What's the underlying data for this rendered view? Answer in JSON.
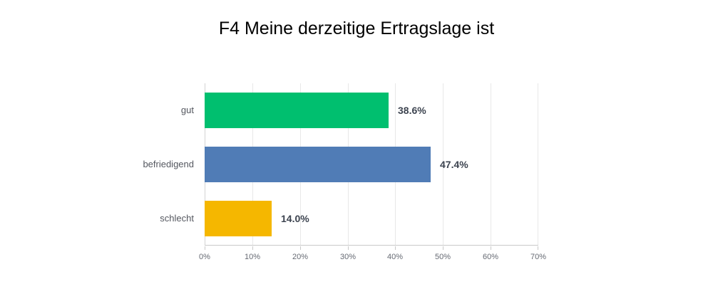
{
  "page": {
    "background": "#ffffff"
  },
  "chart_data": {
    "type": "bar",
    "orientation": "horizontal",
    "title": "F4 Meine derzeitige Ertragslage ist",
    "categories": [
      "gut",
      "befriedigend",
      "schlecht"
    ],
    "values": [
      38.6,
      47.4,
      14.0
    ],
    "value_labels": [
      "38.6%",
      "47.4%",
      "14.0%"
    ],
    "bar_colors": [
      "#00BF6F",
      "#507CB6",
      "#F5B700"
    ],
    "xlabel": "",
    "ylabel": "",
    "xlim": [
      0,
      70
    ],
    "x_ticks": [
      0,
      10,
      20,
      30,
      40,
      50,
      60,
      70
    ],
    "x_tick_labels": [
      "0%",
      "10%",
      "20%",
      "30%",
      "40%",
      "50%",
      "60%",
      "70%"
    ],
    "grid": true,
    "legend": false
  },
  "colors": {
    "title": "#000000",
    "grid_line": "#e8e8e8",
    "zero_line": "#d4d4d4",
    "axis_line": "#c9c9c9",
    "tick_label": "#666a73",
    "category_label": "#54575f",
    "value_label": "#3d4450"
  }
}
